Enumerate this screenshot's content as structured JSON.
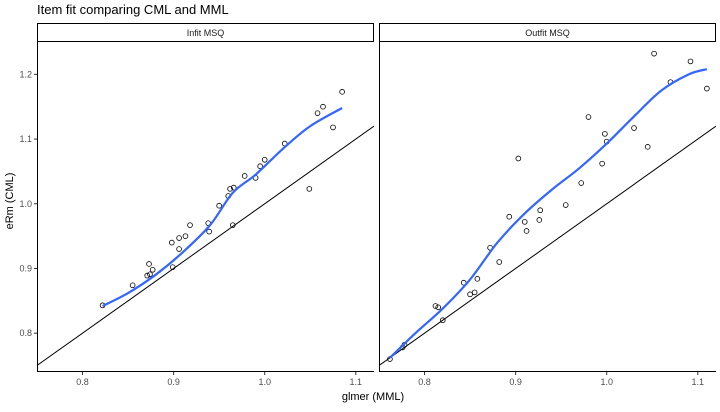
{
  "chart_data": {
    "type": "scatter",
    "title": "Item fit comparing CML and MML",
    "xlabel": "glmer (MML)",
    "ylabel": "eRm (CML)",
    "grid": false,
    "reference_line": {
      "slope": 1,
      "intercept": 0,
      "color": "#000000"
    },
    "smooth_color": "#3366ff",
    "xlim": [
      0.75,
      1.12
    ],
    "x_ticks": [
      0.8,
      0.9,
      1.0,
      1.1
    ],
    "x_tick_labels": [
      "0.8",
      "0.9",
      "1.0",
      "1.1"
    ],
    "ylim": [
      0.74,
      1.25
    ],
    "y_ticks": [
      0.8,
      0.9,
      1.0,
      1.1,
      1.2
    ],
    "y_tick_labels": [
      "0.8",
      "0.9",
      "1.0",
      "1.1",
      "1.2"
    ],
    "panels": [
      {
        "title": "Infit MSQ",
        "points": [
          [
            0.822,
            0.843
          ],
          [
            0.855,
            0.874
          ],
          [
            0.871,
            0.889
          ],
          [
            0.874,
            0.891
          ],
          [
            0.877,
            0.898
          ],
          [
            0.873,
            0.907
          ],
          [
            0.899,
            0.902
          ],
          [
            0.898,
            0.94
          ],
          [
            0.906,
            0.93
          ],
          [
            0.906,
            0.947
          ],
          [
            0.913,
            0.95
          ],
          [
            0.918,
            0.967
          ],
          [
            0.939,
            0.957
          ],
          [
            0.938,
            0.97
          ],
          [
            0.95,
            0.997
          ],
          [
            0.96,
            1.012
          ],
          [
            0.962,
            1.023
          ],
          [
            0.966,
            1.025
          ],
          [
            0.965,
            0.967
          ],
          [
            0.978,
            1.043
          ],
          [
            0.99,
            1.04
          ],
          [
            0.995,
            1.058
          ],
          [
            1.0,
            1.068
          ],
          [
            1.022,
            1.093
          ],
          [
            1.049,
            1.023
          ],
          [
            1.058,
            1.14
          ],
          [
            1.064,
            1.15
          ],
          [
            1.075,
            1.118
          ],
          [
            1.085,
            1.173
          ]
        ],
        "smooth": [
          [
            0.822,
            0.842
          ],
          [
            0.85,
            0.862
          ],
          [
            0.88,
            0.89
          ],
          [
            0.91,
            0.925
          ],
          [
            0.94,
            0.967
          ],
          [
            0.965,
            1.017
          ],
          [
            0.99,
            1.045
          ],
          [
            1.02,
            1.085
          ],
          [
            1.05,
            1.12
          ],
          [
            1.085,
            1.148
          ]
        ]
      },
      {
        "title": "Outfit MSQ",
        "points": [
          [
            0.762,
            0.76
          ],
          [
            0.776,
            0.778
          ],
          [
            0.778,
            0.782
          ],
          [
            0.812,
            0.842
          ],
          [
            0.815,
            0.84
          ],
          [
            0.82,
            0.82
          ],
          [
            0.843,
            0.878
          ],
          [
            0.85,
            0.86
          ],
          [
            0.855,
            0.863
          ],
          [
            0.858,
            0.884
          ],
          [
            0.872,
            0.932
          ],
          [
            0.882,
            0.91
          ],
          [
            0.893,
            0.98
          ],
          [
            0.903,
            1.07
          ],
          [
            0.91,
            0.972
          ],
          [
            0.912,
            0.958
          ],
          [
            0.926,
            0.975
          ],
          [
            0.927,
            0.99
          ],
          [
            0.955,
            0.998
          ],
          [
            0.972,
            1.032
          ],
          [
            0.98,
            1.134
          ],
          [
            0.995,
            1.062
          ],
          [
            0.998,
            1.108
          ],
          [
            1.0,
            1.096
          ],
          [
            1.03,
            1.117
          ],
          [
            1.045,
            1.088
          ],
          [
            1.052,
            1.232
          ],
          [
            1.07,
            1.188
          ],
          [
            1.092,
            1.22
          ],
          [
            1.11,
            1.178
          ]
        ],
        "smooth": [
          [
            0.762,
            0.762
          ],
          [
            0.79,
            0.8
          ],
          [
            0.82,
            0.838
          ],
          [
            0.85,
            0.883
          ],
          [
            0.88,
            0.94
          ],
          [
            0.91,
            0.985
          ],
          [
            0.94,
            1.022
          ],
          [
            0.97,
            1.055
          ],
          [
            1.0,
            1.093
          ],
          [
            1.03,
            1.135
          ],
          [
            1.06,
            1.175
          ],
          [
            1.09,
            1.2
          ],
          [
            1.11,
            1.208
          ]
        ]
      }
    ]
  }
}
